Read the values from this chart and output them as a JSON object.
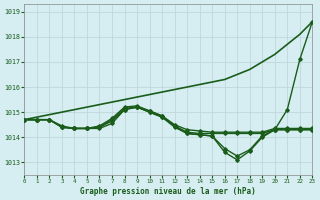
{
  "title": "Graphe pression niveau de la mer (hPa)",
  "bg_color": "#d6eef2",
  "grid_color": "#c0d8dc",
  "line_color": "#1a5c1a",
  "xlim": [
    0,
    23
  ],
  "ylim": [
    1012.5,
    1019.3
  ],
  "yticks": [
    1013,
    1014,
    1015,
    1016,
    1017,
    1018,
    1019
  ],
  "xticks": [
    0,
    1,
    2,
    3,
    4,
    5,
    6,
    7,
    8,
    9,
    10,
    11,
    12,
    13,
    14,
    15,
    16,
    17,
    18,
    19,
    20,
    21,
    22,
    23
  ],
  "series": [
    {
      "y": [
        1014.7,
        1014.8,
        1014.9,
        1015.0,
        1015.1,
        1015.2,
        1015.3,
        1015.4,
        1015.5,
        1015.6,
        1015.7,
        1015.8,
        1015.9,
        1016.0,
        1016.1,
        1016.2,
        1016.3,
        1016.5,
        1016.7,
        1017.0,
        1017.3,
        1017.7,
        1018.1,
        1018.6
      ],
      "marker": false,
      "lw": 1.2
    },
    {
      "y": [
        1014.7,
        1014.7,
        1014.7,
        1014.4,
        1014.35,
        1014.35,
        1014.35,
        1014.55,
        1015.1,
        1015.2,
        1015.05,
        1014.85,
        1014.45,
        1014.15,
        1014.1,
        1014.05,
        1013.4,
        1013.1,
        1013.45,
        1014.0,
        1014.3,
        1015.1,
        1017.1,
        1018.6
      ],
      "marker": true,
      "lw": 1.0
    },
    {
      "y": [
        1014.7,
        1014.7,
        1014.7,
        1014.4,
        1014.35,
        1014.35,
        1014.4,
        1014.65,
        1015.1,
        1015.2,
        1015.0,
        1014.8,
        1014.4,
        1014.15,
        1014.1,
        1014.05,
        1013.55,
        1013.25,
        1013.5,
        1014.05,
        1014.3,
        1014.3,
        1014.3,
        1014.3
      ],
      "marker": true,
      "lw": 1.0
    },
    {
      "y": [
        1014.7,
        1014.7,
        1014.7,
        1014.4,
        1014.35,
        1014.35,
        1014.4,
        1014.7,
        1015.15,
        1015.2,
        1015.0,
        1014.8,
        1014.45,
        1014.2,
        1014.15,
        1014.15,
        1014.15,
        1014.15,
        1014.15,
        1014.15,
        1014.3,
        1014.3,
        1014.3,
        1014.3
      ],
      "marker": true,
      "lw": 1.0
    },
    {
      "y": [
        1014.7,
        1014.7,
        1014.7,
        1014.45,
        1014.35,
        1014.35,
        1014.45,
        1014.75,
        1015.2,
        1015.25,
        1015.05,
        1014.85,
        1014.5,
        1014.3,
        1014.25,
        1014.2,
        1014.2,
        1014.2,
        1014.2,
        1014.2,
        1014.35,
        1014.35,
        1014.35,
        1014.35
      ],
      "marker": true,
      "lw": 1.0
    }
  ]
}
